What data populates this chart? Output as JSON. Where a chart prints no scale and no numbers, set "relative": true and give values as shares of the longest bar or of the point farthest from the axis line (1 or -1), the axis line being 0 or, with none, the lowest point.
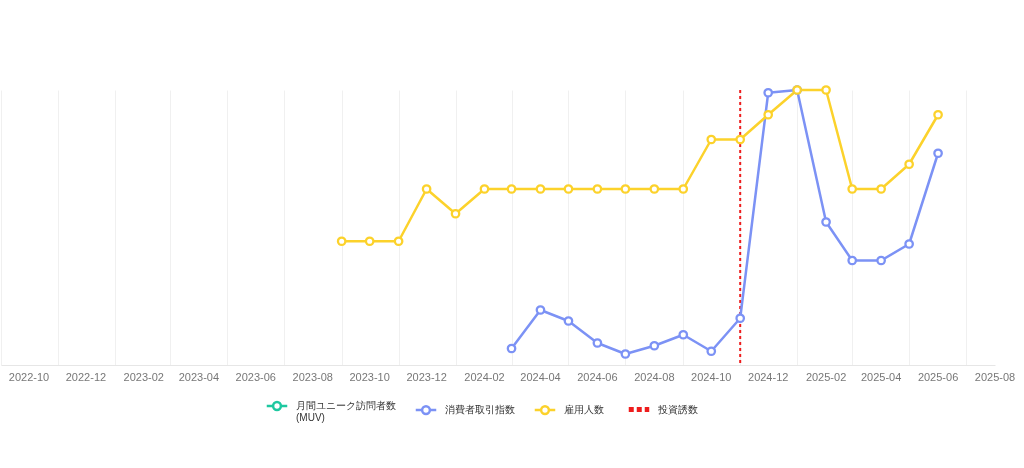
{
  "chart_data": {
    "type": "line",
    "relative": true,
    "marker": "circle",
    "grid": "x",
    "legend": "bottom",
    "x": [
      "2023-09",
      "2023-10",
      "2023-11",
      "2023-12",
      "2024-01",
      "2024-02",
      "2024-03",
      "2024-04",
      "2024-05",
      "2024-06",
      "2024-07",
      "2024-08",
      "2024-09",
      "2024-10",
      "2024-11",
      "2024-12",
      "2025-01",
      "2025-02",
      "2025-03",
      "2025-04",
      "2025-05",
      "2025-06"
    ],
    "xlim": [
      "2022-09",
      "2025-08"
    ],
    "xticks": [
      {
        "value": "2022-09",
        "label": null
      },
      "2022-10",
      {
        "value": "2022-11",
        "label": null
      },
      "2022-12",
      {
        "value": "2023-01",
        "label": null
      },
      "2023-02",
      {
        "value": "2023-03",
        "label": null
      },
      "2023-04",
      {
        "value": "2023-05",
        "label": null
      },
      "2023-06",
      {
        "value": "2023-07",
        "label": null
      },
      "2023-08",
      {
        "value": "2023-09",
        "label": null
      },
      "2023-10",
      {
        "value": "2023-11",
        "label": null
      },
      "2023-12",
      {
        "value": "2024-01",
        "label": null
      },
      "2024-02",
      {
        "value": "2024-03",
        "label": null
      },
      "2024-04",
      {
        "value": "2024-05",
        "label": null
      },
      "2024-06",
      {
        "value": "2024-07",
        "label": null
      },
      "2024-08",
      {
        "value": "2024-09",
        "label": null
      },
      "2024-10",
      {
        "value": "2024-11",
        "label": null
      },
      "2024-12",
      {
        "value": "2025-01",
        "label": null
      },
      "2025-02",
      {
        "value": "2025-03",
        "label": null
      },
      "2025-04",
      {
        "value": "2025-05",
        "label": null
      },
      "2025-06",
      {
        "value": "2025-07",
        "label": null
      },
      "2025-08"
    ],
    "series": [
      {
        "name": "月間ユニーク訪問者数 (MUV)",
        "color": "#1ec8a0",
        "values": [
          null,
          null,
          null,
          null,
          null,
          null,
          null,
          null,
          null,
          null,
          null,
          null,
          null,
          null,
          null,
          null,
          null,
          null,
          null,
          null,
          null,
          null
        ]
      },
      {
        "name": "消費者取引指数",
        "color": "#7c92f5",
        "values": [
          null,
          null,
          null,
          null,
          null,
          null,
          0.06,
          0.2,
          0.16,
          0.08,
          0.04,
          0.07,
          0.11,
          0.05,
          0.17,
          0.99,
          1,
          0.52,
          0.38,
          0.38,
          0.44,
          0.77
        ]
      },
      {
        "name": "雇用人数",
        "color": "#fcd22b",
        "values": [
          0.45,
          0.45,
          0.45,
          0.64,
          0.55,
          0.64,
          0.64,
          0.64,
          0.64,
          0.64,
          0.64,
          0.64,
          0.64,
          0.82,
          0.82,
          0.91,
          1,
          1,
          0.64,
          0.64,
          0.73,
          0.91
        ]
      }
    ],
    "ref_lines": [
      {
        "axis": "x",
        "value": "2024-11",
        "label": "投資誘数",
        "color": "#ee1c1c",
        "line_style": "dotted"
      }
    ]
  }
}
